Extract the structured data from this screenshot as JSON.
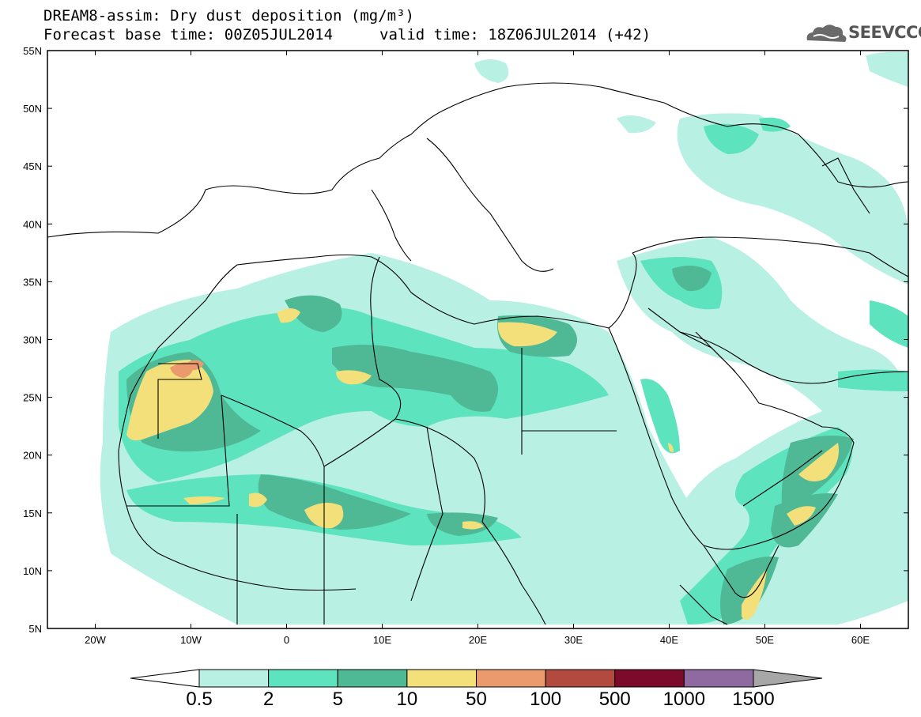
{
  "header": {
    "title": "DREAM8-assim: Dry dust deposition (mg/m³)",
    "base_time": "Forecast base time: 00Z05JUL2014",
    "valid_time": "valid time: 18Z06JUL2014 (+42)"
  },
  "logo": {
    "text": "SEEVCCC",
    "icon": "cloud-icon"
  },
  "map": {
    "lon_range": [
      -25,
      65
    ],
    "lat_range": [
      5,
      55
    ],
    "lon_ticks": [
      "20W",
      "10W",
      "0",
      "10E",
      "20E",
      "30E",
      "40E",
      "50E",
      "60E"
    ],
    "lat_ticks": [
      "55N",
      "50N",
      "45N",
      "40N",
      "35N",
      "30N",
      "25N",
      "20N",
      "15N",
      "10N",
      "5N"
    ]
  },
  "legend": {
    "labels": [
      "0.5",
      "2",
      "5",
      "10",
      "50",
      "100",
      "500",
      "1000",
      "1500"
    ],
    "colors": [
      "#ffffff",
      "#b9f0e4",
      "#5ee3bf",
      "#4fb895",
      "#f4e07a",
      "#ea9a6d",
      "#b24a3f",
      "#7c0a2a",
      "#8e6aa0",
      "#a7a7a7"
    ]
  }
}
